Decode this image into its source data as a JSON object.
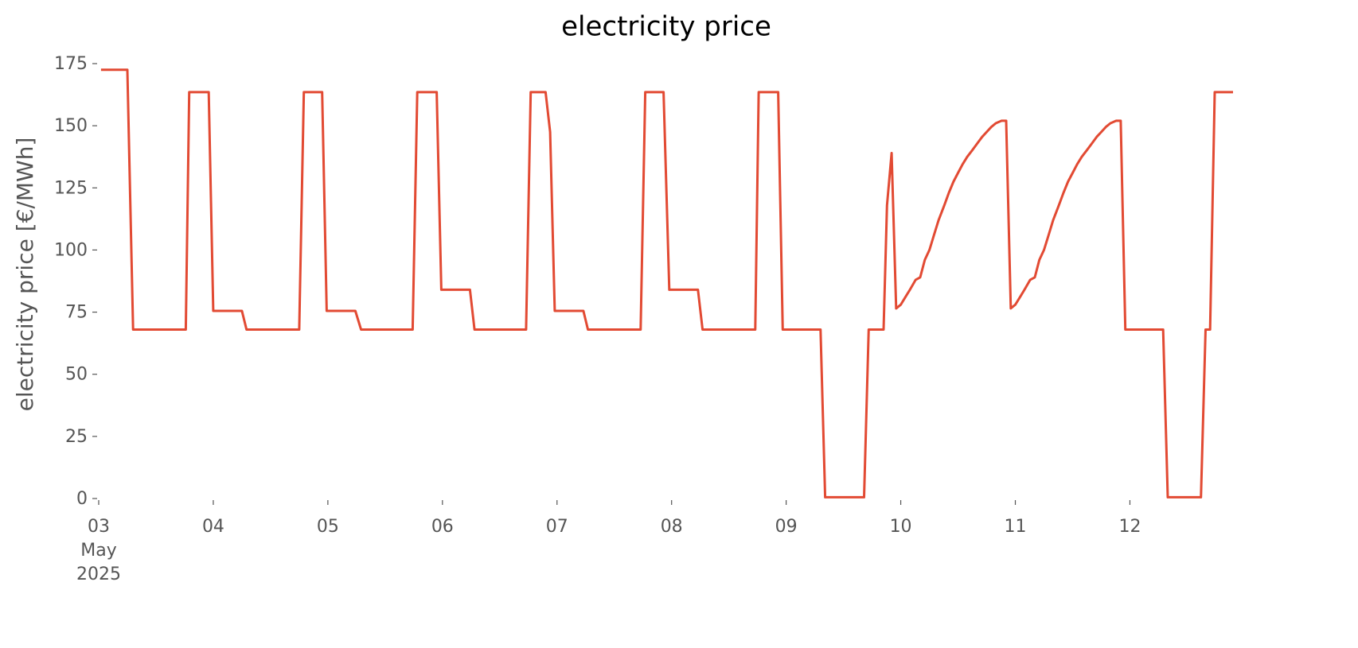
{
  "chart_data": {
    "type": "line",
    "title": "electricity price",
    "ylabel": "electricity price [€/MWh]",
    "x": [
      0.02,
      0.25,
      0.3,
      0.76,
      0.79,
      0.96,
      1.0,
      1.25,
      1.29,
      1.75,
      1.79,
      1.95,
      1.99,
      2.24,
      2.29,
      2.74,
      2.78,
      2.95,
      2.99,
      3.24,
      3.28,
      3.73,
      3.77,
      3.9,
      3.94,
      3.98,
      4.23,
      4.27,
      4.73,
      4.77,
      4.93,
      4.98,
      5.23,
      5.27,
      5.73,
      5.76,
      5.93,
      5.97,
      6.3,
      6.34,
      6.68,
      6.72,
      6.85,
      6.88,
      6.92,
      6.96,
      7.0,
      7.04,
      7.08,
      7.13,
      7.17,
      7.21,
      7.25,
      7.29,
      7.33,
      7.38,
      7.42,
      7.46,
      7.5,
      7.54,
      7.58,
      7.63,
      7.67,
      7.71,
      7.75,
      7.79,
      7.83,
      7.88,
      7.92,
      7.96,
      8.0,
      8.04,
      8.08,
      8.13,
      8.17,
      8.21,
      8.25,
      8.29,
      8.33,
      8.38,
      8.42,
      8.46,
      8.5,
      8.54,
      8.58,
      8.63,
      8.67,
      8.71,
      8.75,
      8.79,
      8.83,
      8.88,
      8.92,
      8.96,
      9.29,
      9.33,
      9.62,
      9.66,
      9.7,
      9.74,
      9.9
    ],
    "series": [
      {
        "name": "electricity price",
        "color": "#e24a33",
        "values": [
          172.5,
          172.5,
          68,
          68,
          163.5,
          163.5,
          75.5,
          75.5,
          68,
          68,
          163.5,
          163.5,
          75.5,
          75.5,
          68,
          68,
          163.5,
          163.5,
          84,
          84,
          68,
          68,
          163.5,
          163.5,
          147.5,
          75.5,
          75.5,
          68,
          68,
          163.5,
          163.5,
          84,
          84,
          68,
          68,
          163.5,
          163.5,
          68,
          68,
          0.5,
          0.5,
          68,
          68,
          118,
          139,
          76.5,
          78,
          81,
          84,
          88,
          89,
          96,
          100,
          106,
          112,
          118,
          123,
          127.5,
          131,
          134.5,
          137.5,
          140.5,
          143,
          145.5,
          147.5,
          149.5,
          151,
          152,
          152,
          76.5,
          78,
          81,
          84,
          88,
          89,
          96,
          100,
          106,
          112,
          118,
          123,
          127.5,
          131,
          134.5,
          137.5,
          140.5,
          143,
          145.5,
          147.5,
          149.5,
          151,
          152,
          152,
          68,
          68,
          0.5,
          0.5,
          68,
          68,
          163.5,
          163.5
        ]
      }
    ],
    "xlim": [
      0,
      9.9
    ],
    "ylim": [
      0,
      175
    ],
    "xticks": [
      {
        "value": 0,
        "label": "03\nMay\n2025"
      },
      {
        "value": 1,
        "label": "04"
      },
      {
        "value": 2,
        "label": "05"
      },
      {
        "value": 3,
        "label": "06"
      },
      {
        "value": 4,
        "label": "07"
      },
      {
        "value": 5,
        "label": "08"
      },
      {
        "value": 6,
        "label": "09"
      },
      {
        "value": 7,
        "label": "10"
      },
      {
        "value": 8,
        "label": "11"
      },
      {
        "value": 9,
        "label": "12"
      }
    ],
    "yticks": [
      0,
      25,
      50,
      75,
      100,
      125,
      150,
      175
    ],
    "grid": false
  }
}
